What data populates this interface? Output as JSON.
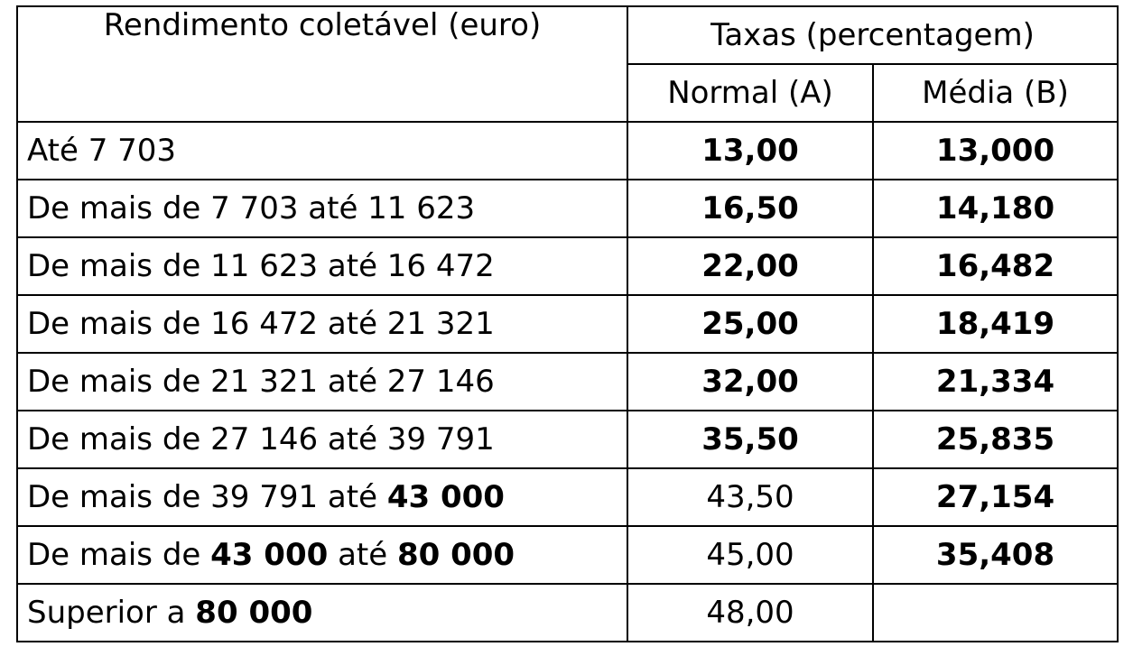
{
  "header": {
    "income_col": "Rendimento coletável (euro)",
    "rates_group": "Taxas (percentagem)",
    "normal_col": "Normal (A)",
    "average_col": "Média (B)"
  },
  "rows": [
    {
      "parts": [
        {
          "t": "Até 7 703",
          "b": false
        }
      ],
      "normal": "13,00",
      "normal_bold": true,
      "average": "13,000",
      "average_bold": true
    },
    {
      "parts": [
        {
          "t": "De mais de 7 703 até 11 623",
          "b": false
        }
      ],
      "normal": "16,50",
      "normal_bold": true,
      "average": "14,180",
      "average_bold": true
    },
    {
      "parts": [
        {
          "t": "De mais de 11 623 até 16 472",
          "b": false
        }
      ],
      "normal": "22,00",
      "normal_bold": true,
      "average": "16,482",
      "average_bold": true
    },
    {
      "parts": [
        {
          "t": "De mais de 16 472 até 21 321",
          "b": false
        }
      ],
      "normal": "25,00",
      "normal_bold": true,
      "average": "18,419",
      "average_bold": true
    },
    {
      "parts": [
        {
          "t": "De mais de 21 321 até 27 146",
          "b": false
        }
      ],
      "normal": "32,00",
      "normal_bold": true,
      "average": "21,334",
      "average_bold": true
    },
    {
      "parts": [
        {
          "t": "De mais de 27 146 até 39 791",
          "b": false
        }
      ],
      "normal": "35,50",
      "normal_bold": true,
      "average": "25,835",
      "average_bold": true
    },
    {
      "parts": [
        {
          "t": "De mais de 39 791 até ",
          "b": false
        },
        {
          "t": "43 000",
          "b": true
        }
      ],
      "normal": "43,50",
      "normal_bold": false,
      "average": "27,154",
      "average_bold": true
    },
    {
      "parts": [
        {
          "t": "De mais de ",
          "b": false
        },
        {
          "t": "43 000",
          "b": true
        },
        {
          "t": " até ",
          "b": false
        },
        {
          "t": "80 000",
          "b": true
        }
      ],
      "normal": "45,00",
      "normal_bold": false,
      "average": "35,408",
      "average_bold": true
    },
    {
      "parts": [
        {
          "t": "Superior a ",
          "b": false
        },
        {
          "t": "80 000",
          "b": true
        }
      ],
      "normal": "48,00",
      "normal_bold": false,
      "average": "",
      "average_bold": false
    }
  ]
}
